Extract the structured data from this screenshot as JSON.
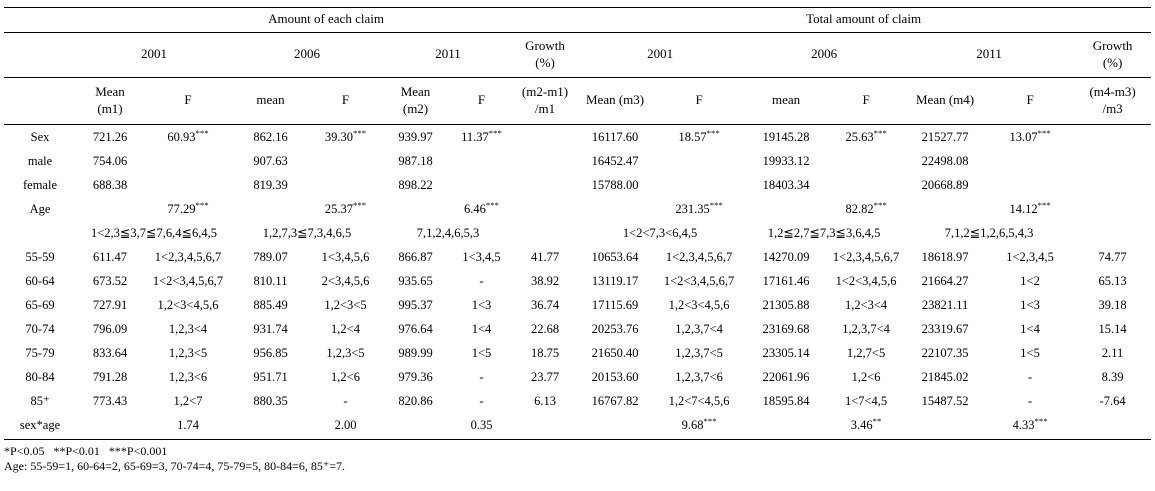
{
  "table": {
    "group_headers": [
      {
        "label": "Amount of each claim",
        "span": 7
      },
      {
        "label": "Total amount of claim",
        "span": 7
      }
    ],
    "year_headers": [
      {
        "label": "2001",
        "span": 2
      },
      {
        "label": "2006",
        "span": 2
      },
      {
        "label": "2011",
        "span": 2
      },
      {
        "label": "Growth\n(%)",
        "span": 1
      },
      {
        "label": "2001",
        "span": 2
      },
      {
        "label": "2006",
        "span": 2
      },
      {
        "label": "2011",
        "span": 2
      },
      {
        "label": "Growth\n(%)",
        "span": 1
      }
    ],
    "col_headers": [
      "Mean\n(m1)",
      "F",
      "mean",
      "F",
      "Mean\n(m2)",
      "F",
      "(m2-m1)\n/m1",
      "Mean (m3)",
      "F",
      "mean",
      "F",
      "Mean (m4)",
      "F",
      "(m4-m3)\n/m3"
    ],
    "rows": [
      {
        "label": "Sex",
        "cells": [
          "721.26",
          "60.93***",
          "862.16",
          "39.30***",
          "939.97",
          "11.37***",
          "",
          "16117.60",
          "18.57***",
          "19145.28",
          "25.63***",
          "21527.77",
          "13.07***",
          ""
        ]
      },
      {
        "label": "male",
        "cells": [
          "754.06",
          "",
          "907.63",
          "",
          "987.18",
          "",
          "",
          "16452.47",
          "",
          "19933.12",
          "",
          "22498.08",
          "",
          ""
        ]
      },
      {
        "label": "female",
        "cells": [
          "688.38",
          "",
          "819.39",
          "",
          "898.22",
          "",
          "",
          "15788.00",
          "",
          "18403.34",
          "",
          "20668.89",
          "",
          ""
        ]
      },
      {
        "label": "Age",
        "cells": [
          "",
          "77.29***",
          "",
          "25.37***",
          "",
          "6.46***",
          "",
          "",
          "231.35***",
          "",
          "82.82***",
          "",
          "14.12***",
          ""
        ]
      },
      {
        "label": "",
        "span_cells": [
          {
            "text": "1<2,3≦3,7≦7,6,4≦6,4,5",
            "span": 2
          },
          {
            "text": "1,2,7,3≦7,3,4,6,5",
            "span": 2
          },
          {
            "text": "7,1,2,4,6,5,3",
            "span": 2
          },
          {
            "text": "",
            "span": 1
          },
          {
            "text": "1<2<7,3<6,4,5",
            "span": 2
          },
          {
            "text": "1,2≦2,7≦7,3≦3,6,4,5",
            "span": 2
          },
          {
            "text": "7,1,2≦1,2,6,5,4,3",
            "span": 2
          },
          {
            "text": "",
            "span": 1
          }
        ]
      },
      {
        "label": "55-59",
        "cells": [
          "611.47",
          "1<2,3,4,5,6,7",
          "789.07",
          "1<3,4,5,6",
          "866.87",
          "1<3,4,5",
          "41.77",
          "10653.64",
          "1<2,3,4,5,6,7",
          "14270.09",
          "1<2,3,4,5,6,7",
          "18618.97",
          "1<2,3,4,5",
          "74.77"
        ]
      },
      {
        "label": "60-64",
        "cells": [
          "673.52",
          "1<2<3,4,5,6,7",
          "810.11",
          "2<3,4,5,6",
          "935.65",
          "-",
          "38.92",
          "13119.17",
          "1<2<3,4,5,6,7",
          "17161.46",
          "1<2<3,4,5,6",
          "21664.27",
          "1<2",
          "65.13"
        ]
      },
      {
        "label": "65-69",
        "cells": [
          "727.91",
          "1,2<3<4,5,6",
          "885.49",
          "1,2<3<5",
          "995.37",
          "1<3",
          "36.74",
          "17115.69",
          "1,2<3<4,5,6",
          "21305.88",
          "1,2<3<4",
          "23821.11",
          "1<3",
          "39.18"
        ]
      },
      {
        "label": "70-74",
        "cells": [
          "796.09",
          "1,2,3<4",
          "931.74",
          "1,2<4",
          "976.64",
          "1<4",
          "22.68",
          "20253.76",
          "1,2,3,7<4",
          "23169.68",
          "1,2,3,7<4",
          "23319.67",
          "1<4",
          "15.14"
        ]
      },
      {
        "label": "75-79",
        "cells": [
          "833.64",
          "1,2,3<5",
          "956.85",
          "1,2,3<5",
          "989.99",
          "1<5",
          "18.75",
          "21650.40",
          "1,2,3,7<5",
          "23305.14",
          "1,2,7<5",
          "22107.35",
          "1<5",
          "2.11"
        ]
      },
      {
        "label": "80-84",
        "cells": [
          "791.28",
          "1,2,3<6",
          "951.71",
          "1,2<6",
          "979.36",
          "-",
          "23.77",
          "20153.60",
          "1,2,3,7<6",
          "22061.96",
          "1,2<6",
          "21845.02",
          "-",
          "8.39"
        ]
      },
      {
        "label": "85⁺",
        "cells": [
          "773.43",
          "1,2<7",
          "880.35",
          "-",
          "820.86",
          "-",
          "6.13",
          "16767.82",
          "1,2<7<4,5,6",
          "18595.84",
          "1<7<4,5",
          "15487.52",
          "-",
          "-7.64"
        ]
      },
      {
        "label": "sex*age",
        "cells": [
          "",
          "1.74",
          "",
          "2.00",
          "",
          "0.35",
          "",
          "",
          "9.68***",
          "",
          "3.46**",
          "",
          "4.33***",
          ""
        ]
      }
    ]
  },
  "footnotes": {
    "significance": "*P<0.05   **P<0.01   ***P<0.001",
    "age_coding": "Age: 55-59=1, 60-64=2, 65-69=3, 70-74=4, 75-79=5, 80-84=6, 85⁺=7."
  }
}
